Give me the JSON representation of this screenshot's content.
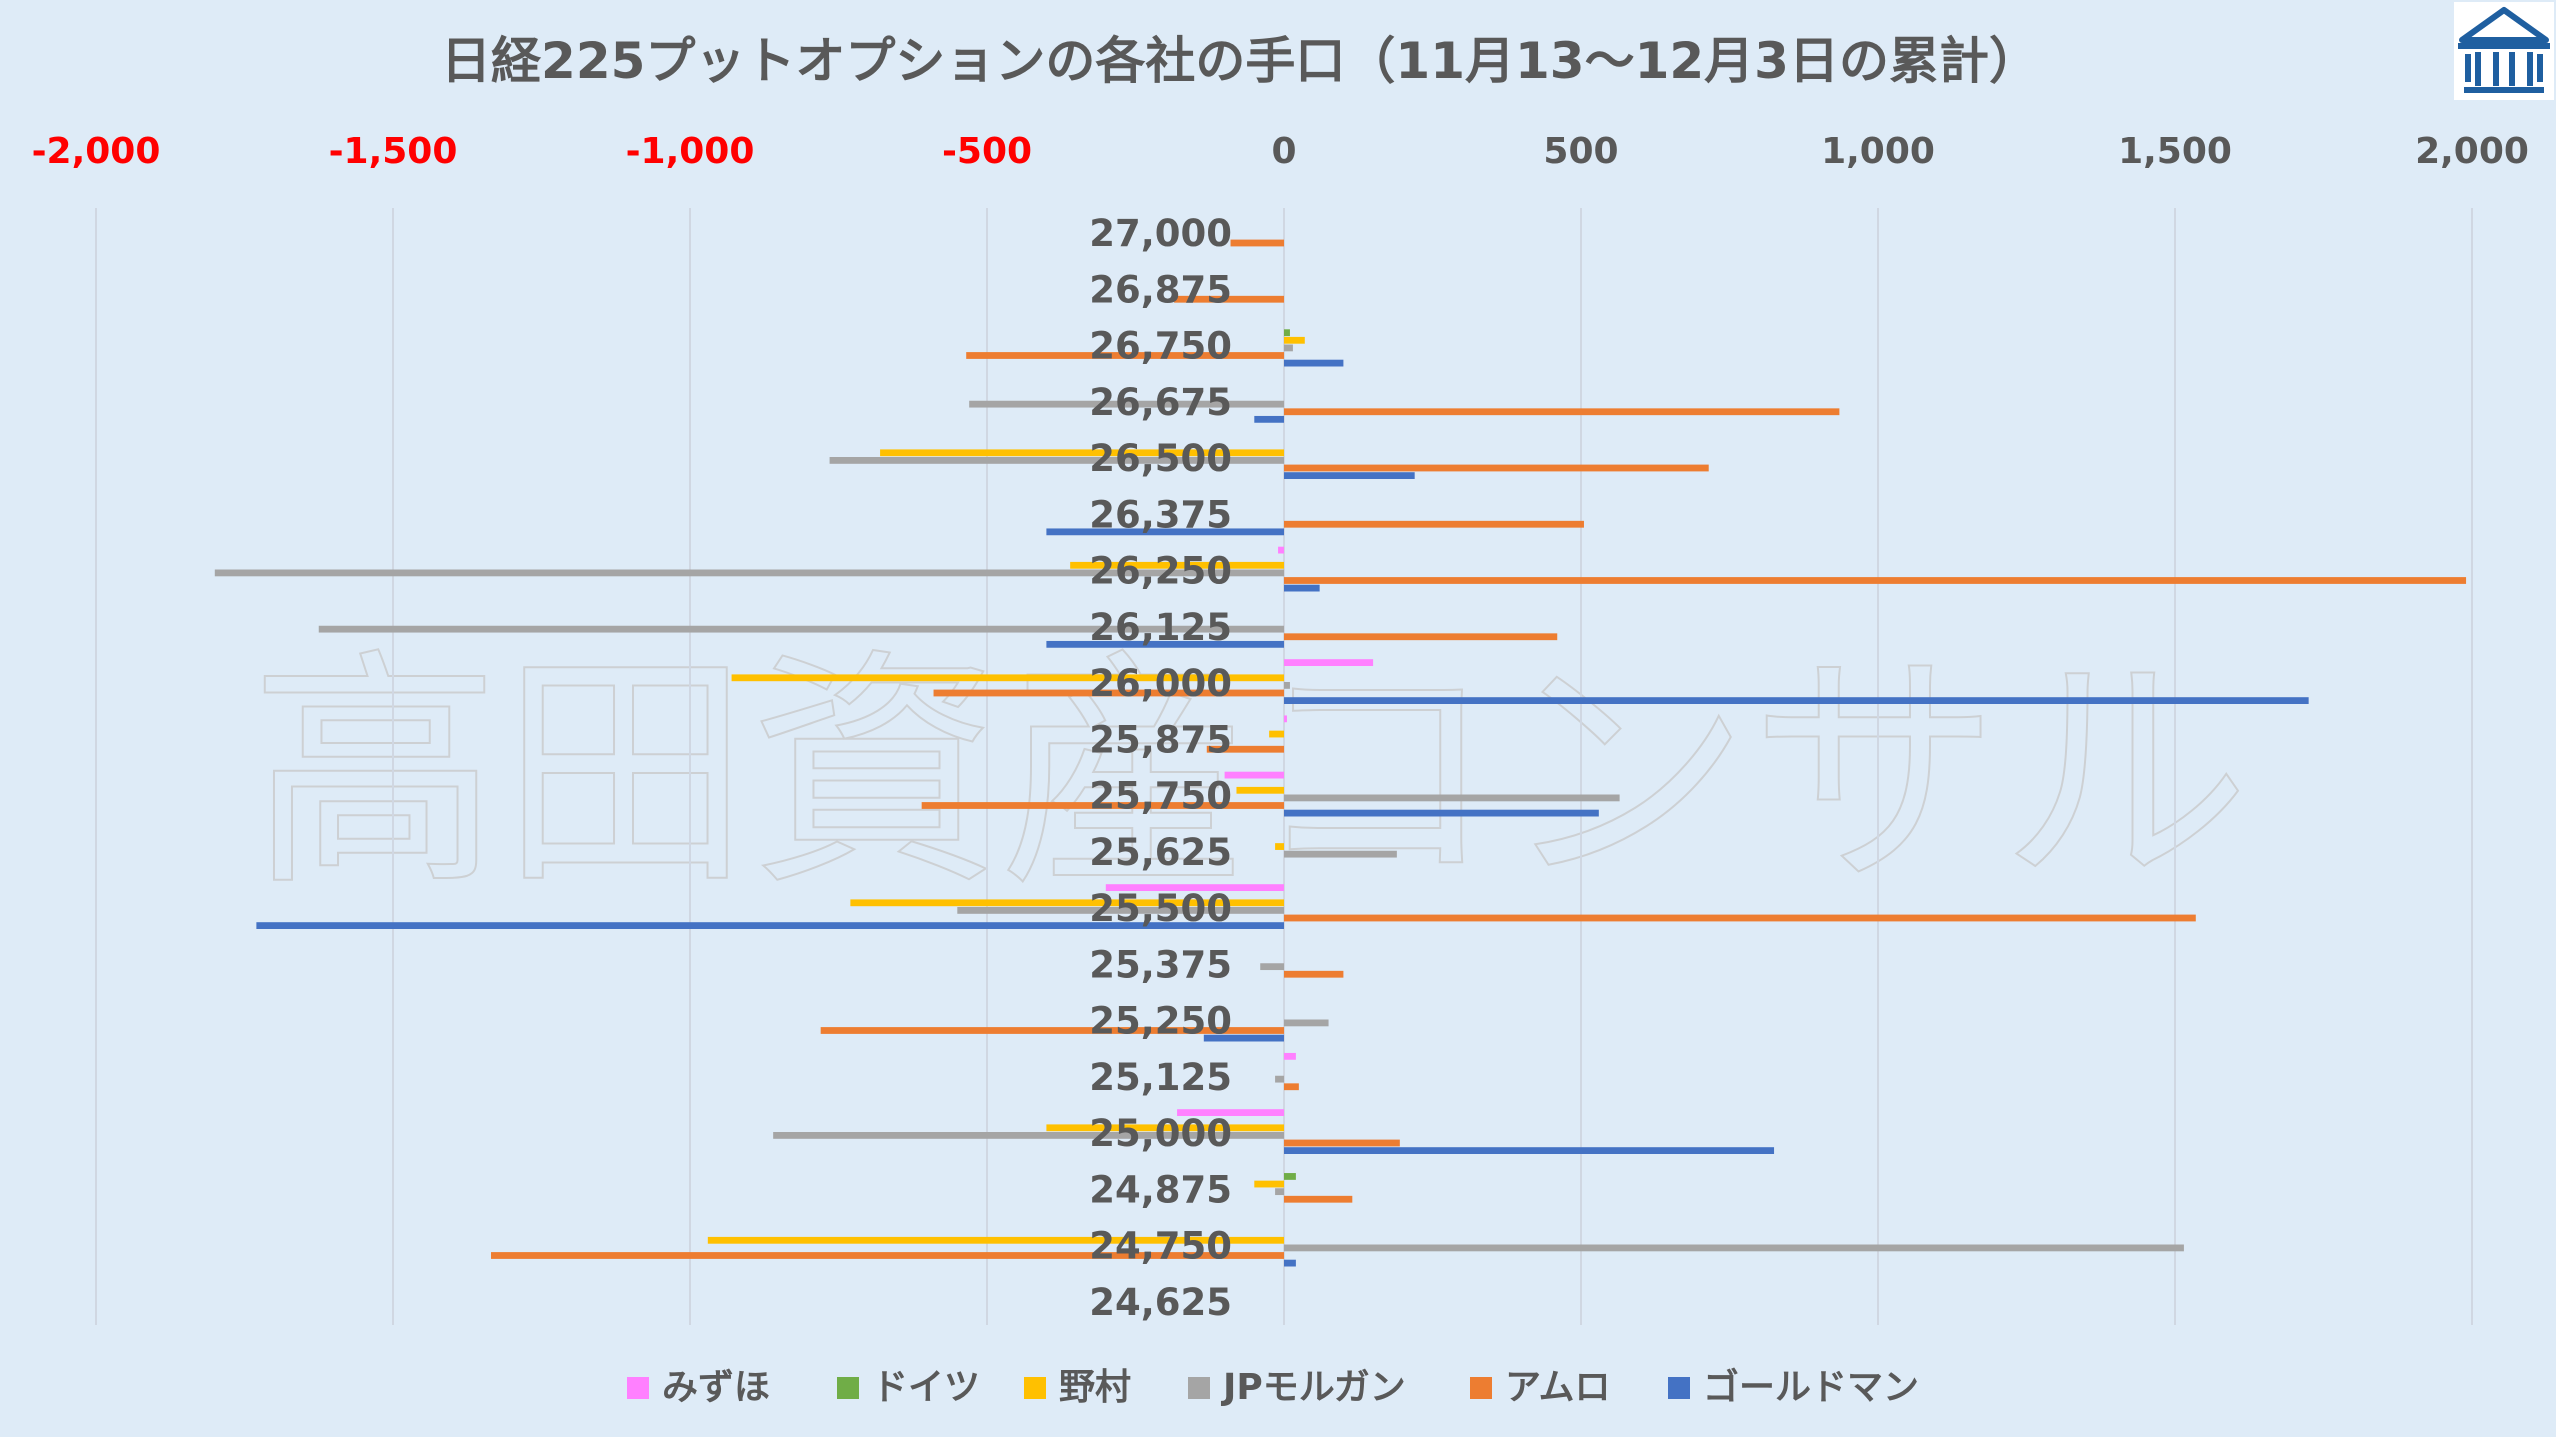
{
  "chart_data": {
    "type": "bar",
    "orientation": "horizontal",
    "title": "日経225プットオプションの各社の手口（11月13〜12月3日の累計）",
    "watermark": "高田資産コンサル",
    "xlim": [
      -2000,
      2000
    ],
    "xticks": [
      -2000,
      -1500,
      -1000,
      -500,
      0,
      500,
      1000,
      1500,
      2000
    ],
    "xtick_labels": [
      "-2,000",
      "-1,500",
      "-1,000",
      "-500",
      "0",
      "500",
      "1,000",
      "1,500",
      "2,000"
    ],
    "negative_tick_color": "#ff0000",
    "positive_tick_color": "#595959",
    "grid": "vertical",
    "legend_position": "bottom",
    "categories": [
      "27,000",
      "26,875",
      "26,750",
      "26,675",
      "26,500",
      "26,375",
      "26,250",
      "26,125",
      "26,000",
      "25,875",
      "25,750",
      "25,625",
      "25,500",
      "25,375",
      "25,250",
      "25,125",
      "25,000",
      "24,875",
      "24,750",
      "24,625"
    ],
    "series": [
      {
        "name": "みずほ",
        "color": "#ff80ff",
        "values": [
          0,
          0,
          0,
          0,
          0,
          0,
          -10,
          0,
          150,
          5,
          -100,
          0,
          -300,
          0,
          0,
          20,
          -180,
          0,
          0,
          0
        ]
      },
      {
        "name": "ドイツ",
        "color": "#70ad47",
        "values": [
          0,
          0,
          10,
          0,
          0,
          0,
          0,
          0,
          0,
          0,
          0,
          0,
          0,
          0,
          0,
          0,
          0,
          20,
          0,
          0
        ]
      },
      {
        "name": "野村",
        "color": "#ffc000",
        "values": [
          0,
          0,
          35,
          0,
          -680,
          0,
          -360,
          0,
          -930,
          -25,
          -80,
          -15,
          -730,
          0,
          0,
          0,
          -400,
          -50,
          -970,
          0
        ]
      },
      {
        "name": "JPモルガン",
        "color": "#a5a5a5",
        "values": [
          0,
          0,
          15,
          -530,
          -765,
          0,
          -1800,
          -1625,
          10,
          0,
          565,
          190,
          -550,
          -40,
          75,
          -15,
          -860,
          -15,
          1515,
          0
        ]
      },
      {
        "name": "アムロ",
        "color": "#ed7d31",
        "values": [
          -90,
          -185,
          -535,
          935,
          715,
          505,
          1990,
          460,
          -590,
          -130,
          -610,
          0,
          1535,
          100,
          -780,
          25,
          195,
          115,
          -1335,
          0
        ]
      },
      {
        "name": "ゴールドマン",
        "color": "#4472c4",
        "values": [
          0,
          0,
          100,
          -50,
          220,
          -400,
          60,
          -400,
          1725,
          0,
          530,
          0,
          -1730,
          0,
          -135,
          0,
          825,
          0,
          20,
          0
        ]
      }
    ]
  },
  "colors": {
    "background": "#deebf7",
    "grid": "#d0d7e2",
    "text": "#595959"
  },
  "logo": {
    "icon": "bank-building-icon",
    "color": "#1f5fa0"
  }
}
